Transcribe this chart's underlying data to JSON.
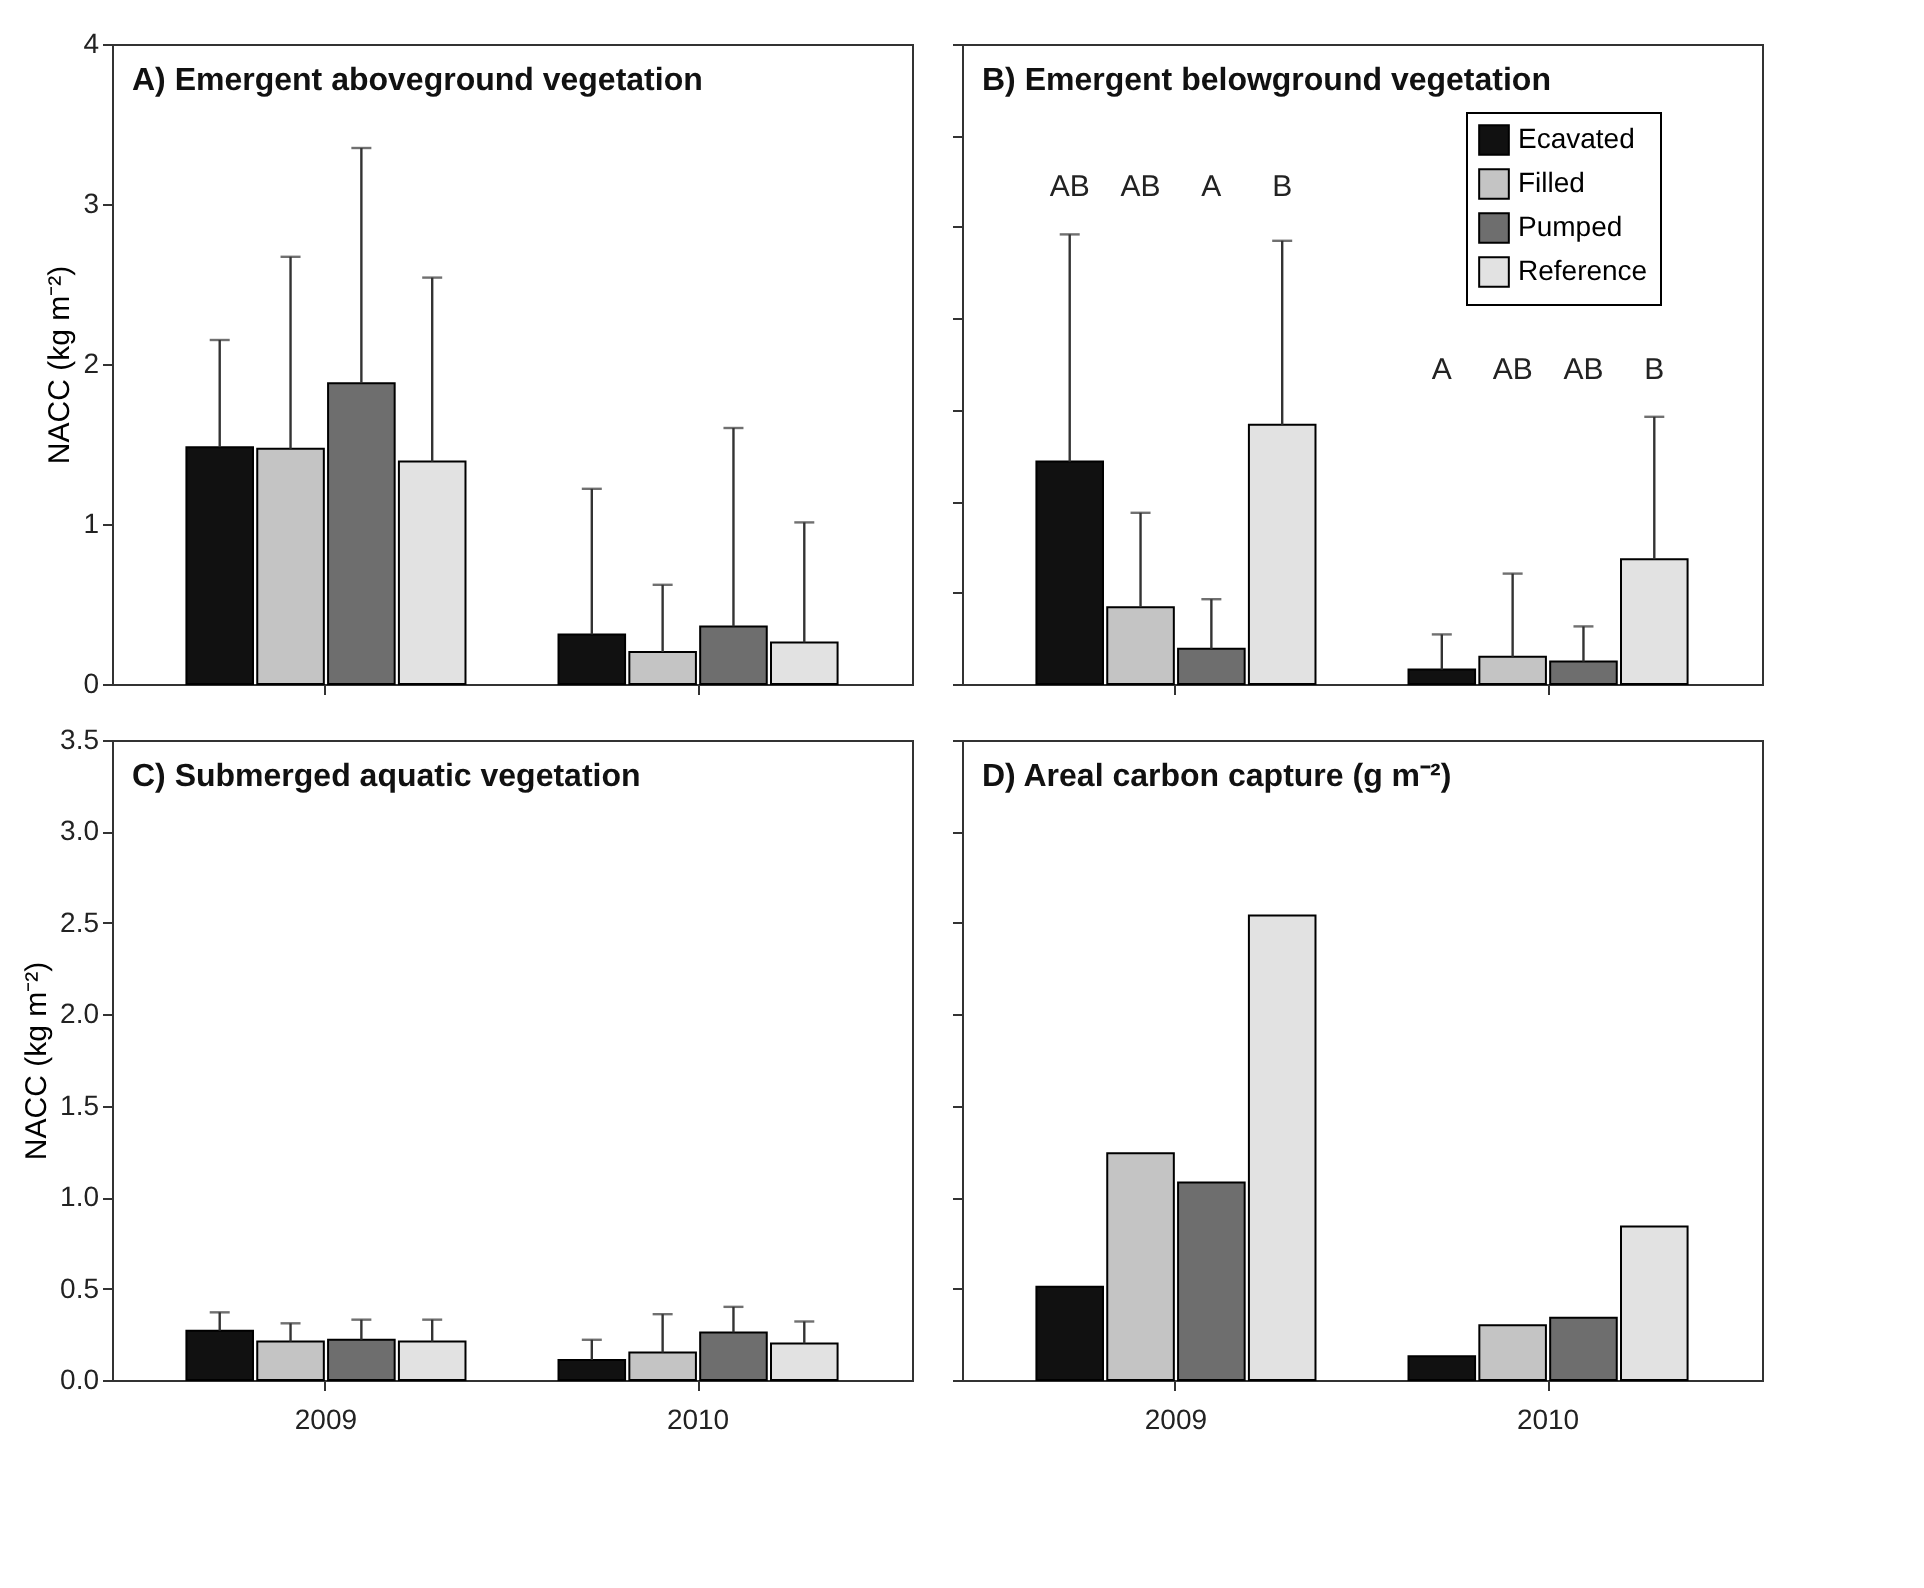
{
  "chart_data": [
    {
      "type": "bar",
      "title": "A) Emergent aboveground vegetation",
      "ylabel": "NACC (kg m⁻²)",
      "categories": [
        "2009",
        "2010"
      ],
      "ylim": [
        0,
        4
      ],
      "yticks": [
        0,
        1,
        2,
        3,
        4
      ],
      "tick_labels": "y",
      "grid": false,
      "series": [
        {
          "color": "#111111",
          "values": [
            1.48,
            0.31
          ],
          "errors": [
            [
              1.48,
              2.15
            ],
            [
              0.31,
              1.22
            ]
          ]
        },
        {
          "color": "#c4c4c4",
          "values": [
            1.47,
            0.2
          ],
          "errors": [
            [
              1.47,
              2.67
            ],
            [
              0.2,
              0.62
            ]
          ]
        },
        {
          "color": "#6e6e6e",
          "values": [
            1.88,
            0.36
          ],
          "errors": [
            [
              1.88,
              3.35
            ],
            [
              0.36,
              1.6
            ]
          ]
        },
        {
          "color": "#e2e2e2",
          "values": [
            1.39,
            0.26
          ],
          "errors": [
            [
              1.39,
              2.54
            ],
            [
              0.26,
              1.01
            ]
          ]
        }
      ]
    },
    {
      "type": "bar",
      "title": "B) Emergent belowground vegetation",
      "categories": [
        "2009",
        "2010"
      ],
      "ylim": [
        0,
        4
      ],
      "yticks": [
        {
          "value": 0,
          "label": null
        },
        {
          "value": 0.57,
          "label": null
        },
        {
          "value": 1.14,
          "label": null
        },
        {
          "value": 1.71,
          "label": null
        },
        {
          "value": 2.29,
          "label": null
        },
        {
          "value": 2.86,
          "label": null
        },
        {
          "value": 3.43,
          "label": null
        },
        {
          "value": 4,
          "label": null
        }
      ],
      "tick_labels": false,
      "grid": false,
      "legend": "top right",
      "series": [
        {
          "name": "Ecavated",
          "color": "#111111",
          "values": [
            1.39,
            0.09
          ],
          "errors": [
            [
              1.39,
              2.81
            ],
            [
              0.09,
              0.31
            ]
          ]
        },
        {
          "name": "Filled",
          "color": "#c4c4c4",
          "values": [
            0.48,
            0.17
          ],
          "errors": [
            [
              0.48,
              1.07
            ],
            [
              0.17,
              0.69
            ]
          ]
        },
        {
          "name": "Pumped",
          "color": "#6e6e6e",
          "values": [
            0.22,
            0.14
          ],
          "errors": [
            [
              0.22,
              0.53
            ],
            [
              0.14,
              0.36
            ]
          ]
        },
        {
          "name": "Reference",
          "color": "#e2e2e2",
          "values": [
            1.62,
            0.78
          ],
          "errors": [
            [
              1.62,
              2.77
            ],
            [
              0.78,
              1.67
            ]
          ]
        }
      ],
      "annotations": [
        "AB",
        "AB",
        "A",
        "B",
        "A",
        "AB",
        "AB",
        "B"
      ]
    },
    {
      "type": "bar",
      "title": "C) Submerged aquatic vegetation",
      "ylabel": "NACC (kg m⁻²)",
      "categories": [
        "2009",
        "2010"
      ],
      "ylim": [
        0,
        3.5
      ],
      "yticks": [
        {
          "value": 0,
          "label": "0.0"
        },
        {
          "value": 0.5,
          "label": "0.5"
        },
        {
          "value": 1,
          "label": "1.0"
        },
        {
          "value": 1.5,
          "label": "1.5"
        },
        {
          "value": 2,
          "label": "2.0"
        },
        {
          "value": 2.5,
          "label": "2.5"
        },
        {
          "value": 3,
          "label": "3.0"
        },
        {
          "value": 3.5,
          "label": "3.5"
        }
      ],
      "grid": false,
      "series": [
        {
          "color": "#111111",
          "values": [
            0.27,
            0.11
          ],
          "errors": [
            [
              0.27,
              0.37
            ],
            [
              0.11,
              0.22
            ]
          ]
        },
        {
          "color": "#c4c4c4",
          "values": [
            0.21,
            0.15
          ],
          "errors": [
            [
              0.21,
              0.31
            ],
            [
              0.15,
              0.36
            ]
          ]
        },
        {
          "color": "#6e6e6e",
          "values": [
            0.22,
            0.26
          ],
          "errors": [
            [
              0.22,
              0.33
            ],
            [
              0.26,
              0.4
            ]
          ]
        },
        {
          "color": "#e2e2e2",
          "values": [
            0.21,
            0.2
          ],
          "errors": [
            [
              0.21,
              0.33
            ],
            [
              0.2,
              0.32
            ]
          ]
        }
      ]
    },
    {
      "type": "bar",
      "title": "D) Areal carbon capture (g m⁻²)",
      "categories": [
        "2009",
        "2010"
      ],
      "ylim": [
        0,
        3.5
      ],
      "yticks": [
        {
          "value": 0,
          "label": null
        },
        {
          "value": 0.5,
          "label": null
        },
        {
          "value": 1,
          "label": null
        },
        {
          "value": 1.5,
          "label": null
        },
        {
          "value": 2,
          "label": null
        },
        {
          "value": 2.5,
          "label": null
        },
        {
          "value": 3,
          "label": null
        },
        {
          "value": 3.5,
          "label": null
        }
      ],
      "tick_labels": "x",
      "grid": false,
      "series": [
        {
          "color": "#111111",
          "values": [
            0.51,
            0.13
          ]
        },
        {
          "color": "#c4c4c4",
          "values": [
            1.24,
            0.3
          ]
        },
        {
          "color": "#6e6e6e",
          "values": [
            1.08,
            0.34
          ]
        },
        {
          "color": "#e2e2e2",
          "values": [
            2.54,
            0.84
          ]
        }
      ]
    }
  ]
}
